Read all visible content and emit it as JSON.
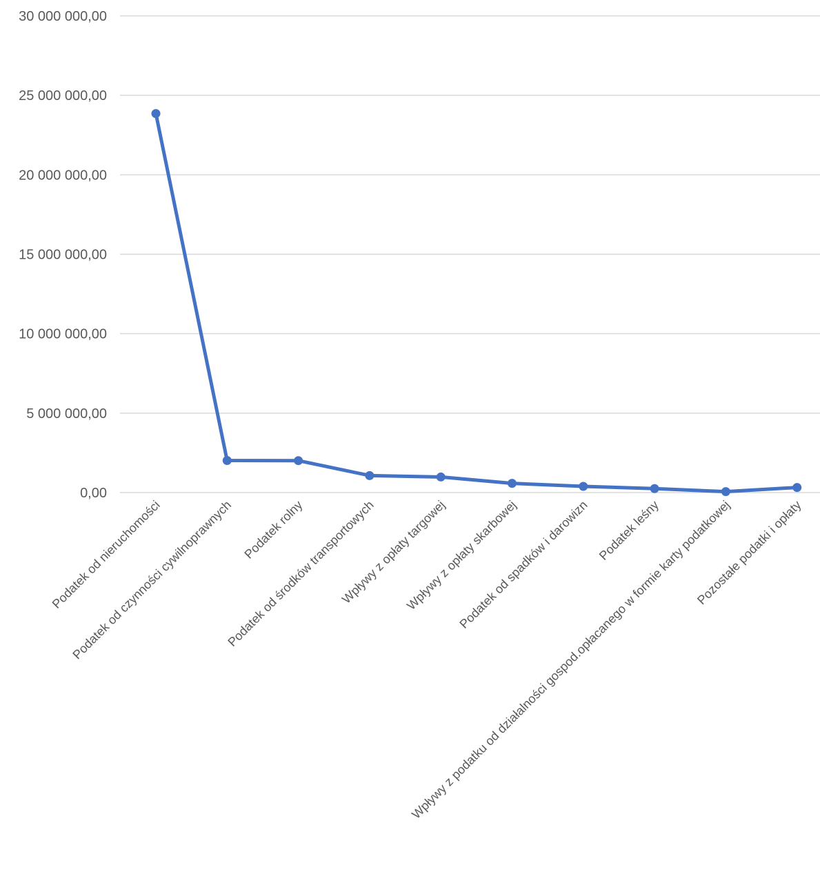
{
  "chart_data": {
    "type": "line",
    "title": "",
    "xlabel": "",
    "ylabel": "",
    "ylim": [
      0,
      30000000
    ],
    "yticks": [
      0,
      5000000,
      10000000,
      15000000,
      20000000,
      25000000,
      30000000
    ],
    "ytick_labels": [
      "0,00",
      "5 000 000,00",
      "10 000 000,00",
      "15 000 000,00",
      "20 000 000,00",
      "25 000 000,00",
      "30 000 000,00"
    ],
    "grid": true,
    "legend": "none",
    "color": "#4472c4",
    "categories": [
      "Podatek od nieruchomości",
      "Podatek od czynności cywilnoprawnych",
      "Podatek rolny",
      "Podatek od środków transportowych",
      "Wpływy z opłaty targowej",
      "Wpływy z opłaty skarbowej",
      "Podatek od spadków i darowizn",
      "Podatek leśny",
      "Wpływy z podatku od działalności gospod.opłacanego w formie karty podatkowej",
      "Pozostałe podatki i opłaty"
    ],
    "series": [
      {
        "values": [
          23850000,
          2020000,
          2010000,
          1070000,
          980000,
          580000,
          390000,
          250000,
          60000,
          320000
        ]
      }
    ]
  }
}
